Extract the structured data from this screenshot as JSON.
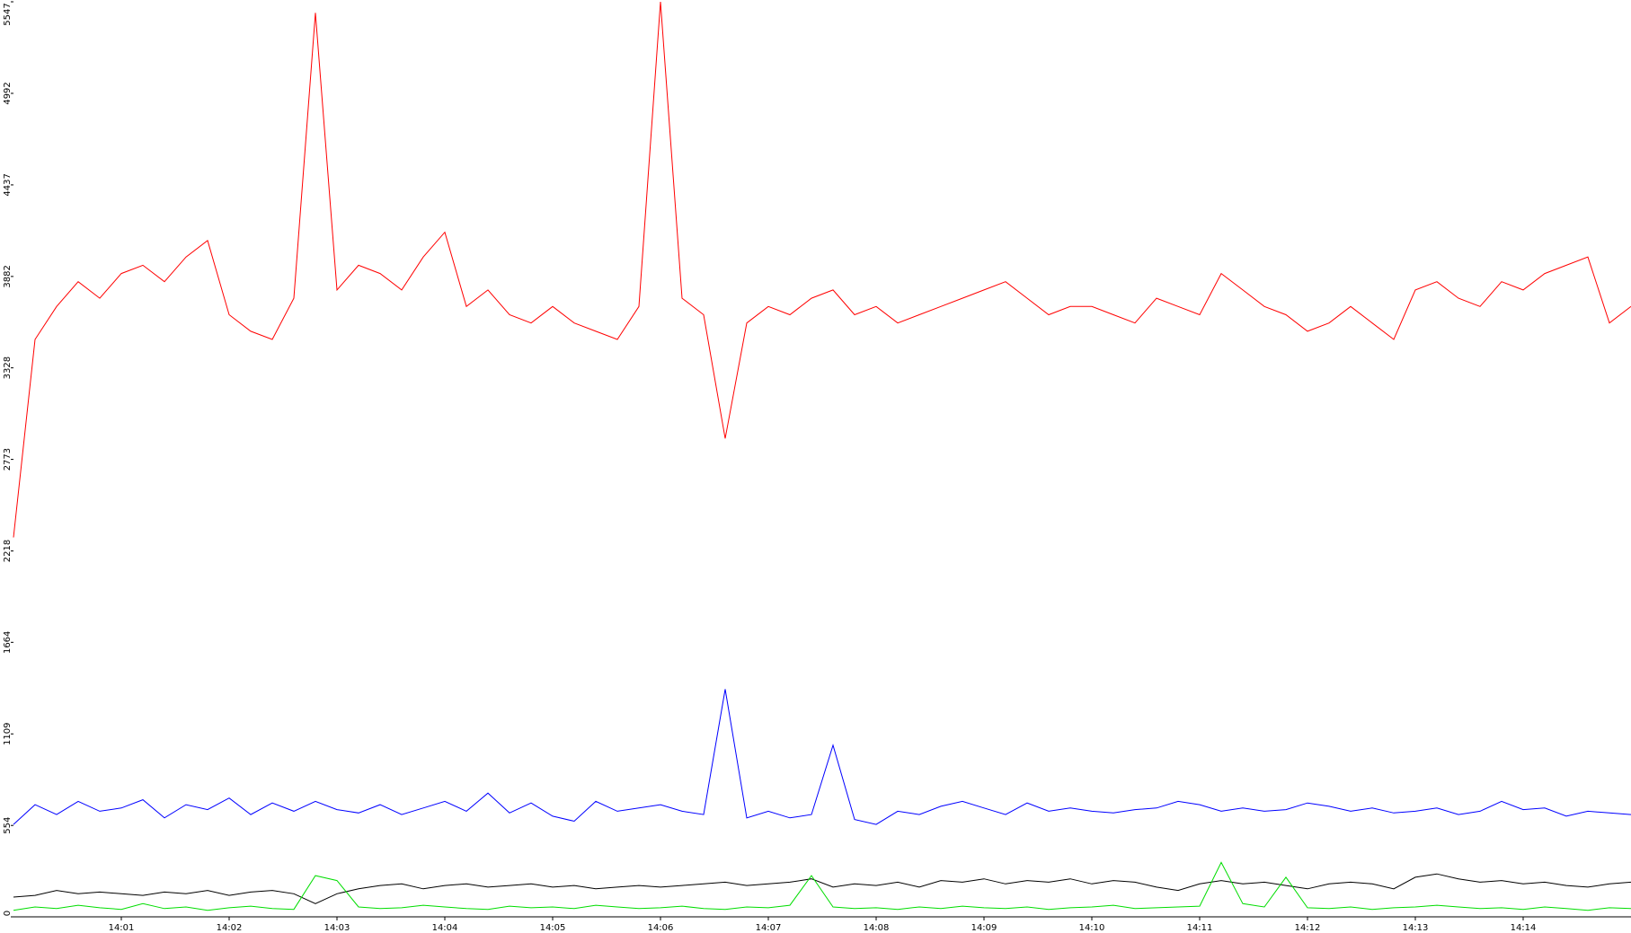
{
  "chart_data": {
    "type": "line",
    "categories": [
      null,
      null,
      null,
      null,
      null,
      "14:01",
      null,
      null,
      null,
      null,
      "14:02",
      null,
      null,
      null,
      null,
      "14:03",
      null,
      null,
      null,
      null,
      "14:04",
      null,
      null,
      null,
      null,
      "14:05",
      null,
      null,
      null,
      null,
      "14:06",
      null,
      null,
      null,
      null,
      "14:07",
      null,
      null,
      null,
      null,
      "14:08",
      null,
      null,
      null,
      null,
      "14:09",
      null,
      null,
      null,
      null,
      "14:10",
      null,
      null,
      null,
      null,
      "14:11",
      null,
      null,
      null,
      null,
      "14:12",
      null,
      null,
      null,
      null,
      "14:13",
      null,
      null,
      null,
      null,
      "14:14",
      null,
      null,
      null,
      null,
      null
    ],
    "series": [
      {
        "color": "#ff0000",
        "values": [
          2300,
          3500,
          3700,
          3850,
          3750,
          3900,
          3950,
          3850,
          4000,
          4100,
          3650,
          3550,
          3500,
          3750,
          5480,
          3800,
          3950,
          3900,
          3800,
          4000,
          4150,
          3700,
          3800,
          3650,
          3600,
          3700,
          3600,
          3550,
          3500,
          3700,
          5547,
          3750,
          3650,
          2900,
          3600,
          3700,
          3650,
          3750,
          3800,
          3650,
          3700,
          3600,
          3650,
          3700,
          3750,
          3800,
          3850,
          3750,
          3650,
          3700,
          3700,
          3650,
          3600,
          3750,
          3700,
          3650,
          3900,
          3800,
          3700,
          3650,
          3550,
          3600,
          3700,
          3600,
          3500,
          3800,
          3850,
          3750,
          3700,
          3850,
          3800,
          3900,
          3950,
          4000,
          3600,
          3700
        ]
      },
      {
        "color": "#0000ff",
        "values": [
          560,
          680,
          620,
          700,
          640,
          660,
          710,
          600,
          680,
          650,
          720,
          620,
          690,
          640,
          700,
          650,
          630,
          680,
          620,
          660,
          700,
          640,
          750,
          630,
          690,
          610,
          580,
          700,
          640,
          660,
          680,
          640,
          620,
          1380,
          600,
          640,
          600,
          620,
          1040,
          590,
          560,
          640,
          620,
          670,
          700,
          660,
          620,
          690,
          640,
          660,
          640,
          630,
          650,
          660,
          700,
          680,
          640,
          660,
          640,
          650,
          690,
          670,
          640,
          660,
          630,
          640,
          660,
          620,
          640,
          700,
          650,
          660,
          610,
          640,
          630,
          620
        ]
      },
      {
        "color": "#000000",
        "values": [
          120,
          130,
          160,
          140,
          150,
          140,
          130,
          150,
          140,
          160,
          130,
          150,
          160,
          140,
          80,
          140,
          170,
          190,
          200,
          170,
          190,
          200,
          180,
          190,
          200,
          180,
          190,
          170,
          180,
          190,
          180,
          190,
          200,
          210,
          190,
          200,
          210,
          230,
          180,
          200,
          190,
          210,
          180,
          220,
          210,
          230,
          200,
          220,
          210,
          230,
          200,
          220,
          210,
          180,
          160,
          200,
          220,
          200,
          210,
          190,
          170,
          200,
          210,
          200,
          170,
          240,
          260,
          230,
          210,
          220,
          200,
          210,
          190,
          180,
          200,
          210
        ]
      },
      {
        "color": "#00dd00",
        "values": [
          40,
          60,
          50,
          70,
          55,
          45,
          80,
          50,
          60,
          40,
          55,
          65,
          50,
          45,
          250,
          220,
          60,
          50,
          55,
          70,
          60,
          50,
          45,
          65,
          55,
          60,
          50,
          70,
          60,
          50,
          55,
          65,
          50,
          45,
          60,
          55,
          70,
          250,
          60,
          50,
          55,
          45,
          60,
          50,
          65,
          55,
          50,
          60,
          45,
          55,
          60,
          70,
          50,
          55,
          60,
          65,
          330,
          80,
          60,
          240,
          55,
          50,
          60,
          45,
          55,
          60,
          70,
          60,
          50,
          55,
          45,
          60,
          50,
          40,
          55,
          50
        ]
      }
    ],
    "ylim": [
      0,
      5547
    ],
    "yticks": [
      0,
      554,
      1109,
      1664,
      2218,
      2773,
      3328,
      3882,
      4437,
      4992,
      5547
    ]
  }
}
